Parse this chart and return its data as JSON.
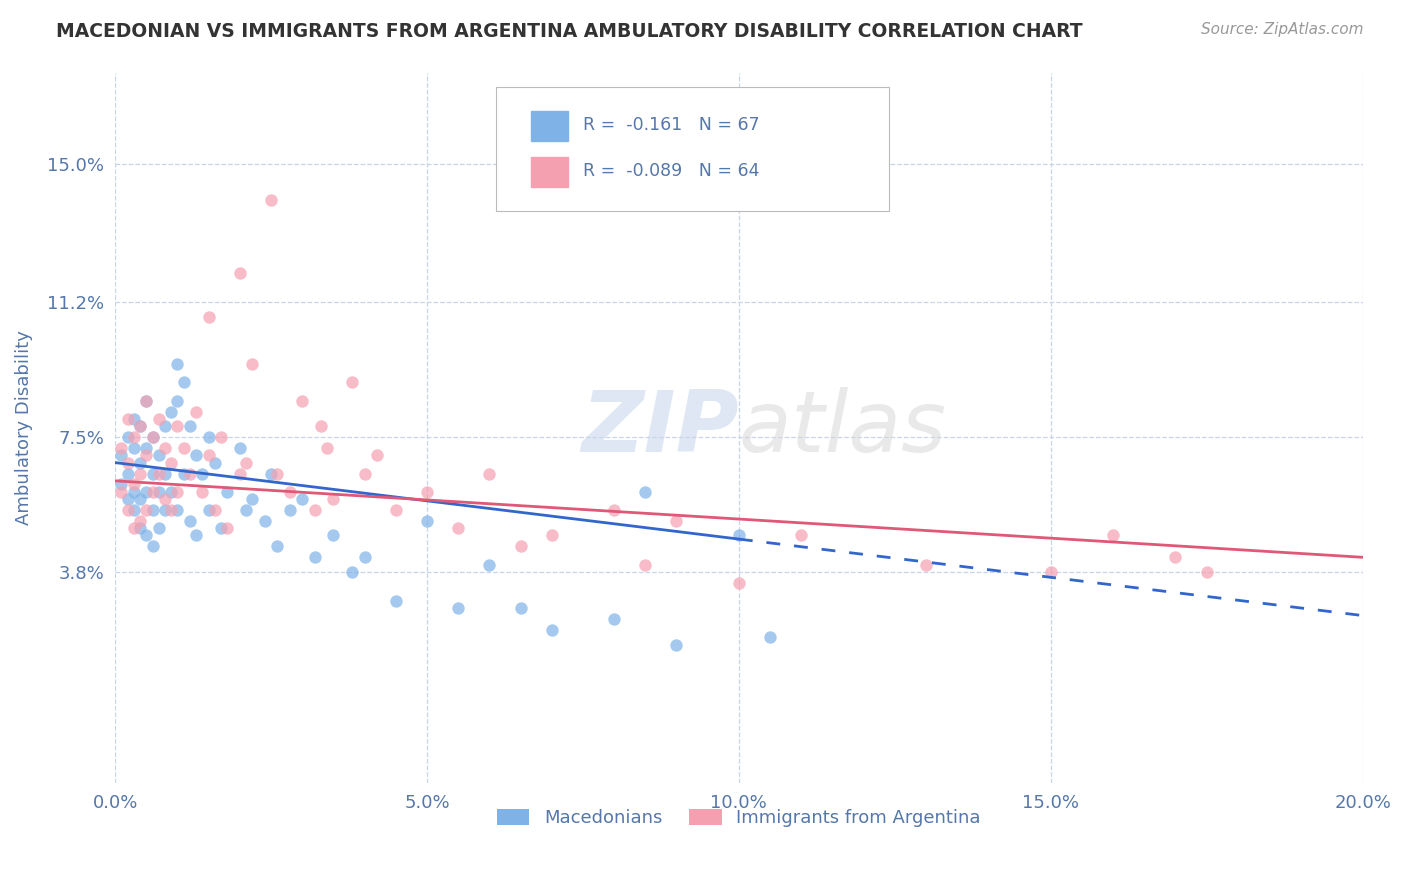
{
  "title": "MACEDONIAN VS IMMIGRANTS FROM ARGENTINA AMBULATORY DISABILITY CORRELATION CHART",
  "source": "Source: ZipAtlas.com",
  "ylabel": "Ambulatory Disability",
  "watermark": "ZIPatlas",
  "xlim": [
    0.0,
    0.2
  ],
  "ylim": [
    -0.02,
    0.175
  ],
  "yticks": [
    0.038,
    0.075,
    0.112,
    0.15
  ],
  "ytick_labels": [
    "3.8%",
    "7.5%",
    "11.2%",
    "15.0%"
  ],
  "xticks": [
    0.0,
    0.05,
    0.1,
    0.15,
    0.2
  ],
  "xtick_labels": [
    "0.0%",
    "5.0%",
    "10.0%",
    "15.0%",
    "20.0%"
  ],
  "grid_color": "#c8d4e8",
  "background_color": "#ffffff",
  "series1_color": "#7fb3e8",
  "series2_color": "#f4a0b0",
  "series1_label": "Macedonians",
  "series2_label": "Immigrants from Argentina",
  "series1_R": "-0.161",
  "series1_N": "67",
  "series2_R": "-0.089",
  "series2_N": "64",
  "legend_color": "#5577aa",
  "axis_label_color": "#5577aa",
  "tick_label_color": "#5577aa",
  "title_color": "#333333",
  "line1_color": "#3366cc",
  "line2_color": "#e05878",
  "mac_trend_x0": 0.0,
  "mac_trend_y0": 0.068,
  "mac_trend_x1": 0.1,
  "mac_trend_y1": 0.047,
  "mac_trend_dash_x1": 0.2,
  "mac_trend_dash_y1": 0.026,
  "arg_trend_x0": 0.0,
  "arg_trend_y0": 0.063,
  "arg_trend_x1": 0.2,
  "arg_trend_y1": 0.042,
  "macedonians_x": [
    0.001,
    0.001,
    0.002,
    0.002,
    0.002,
    0.003,
    0.003,
    0.003,
    0.003,
    0.004,
    0.004,
    0.004,
    0.004,
    0.005,
    0.005,
    0.005,
    0.005,
    0.006,
    0.006,
    0.006,
    0.006,
    0.007,
    0.007,
    0.007,
    0.008,
    0.008,
    0.008,
    0.009,
    0.009,
    0.01,
    0.01,
    0.01,
    0.011,
    0.011,
    0.012,
    0.012,
    0.013,
    0.013,
    0.014,
    0.015,
    0.015,
    0.016,
    0.017,
    0.018,
    0.02,
    0.021,
    0.022,
    0.024,
    0.025,
    0.026,
    0.028,
    0.03,
    0.032,
    0.035,
    0.038,
    0.04,
    0.045,
    0.05,
    0.055,
    0.06,
    0.065,
    0.07,
    0.08,
    0.085,
    0.09,
    0.1,
    0.105
  ],
  "macedonians_y": [
    0.07,
    0.062,
    0.075,
    0.065,
    0.058,
    0.08,
    0.072,
    0.06,
    0.055,
    0.078,
    0.068,
    0.058,
    0.05,
    0.085,
    0.072,
    0.06,
    0.048,
    0.075,
    0.065,
    0.055,
    0.045,
    0.07,
    0.06,
    0.05,
    0.078,
    0.065,
    0.055,
    0.082,
    0.06,
    0.095,
    0.085,
    0.055,
    0.09,
    0.065,
    0.078,
    0.052,
    0.07,
    0.048,
    0.065,
    0.075,
    0.055,
    0.068,
    0.05,
    0.06,
    0.072,
    0.055,
    0.058,
    0.052,
    0.065,
    0.045,
    0.055,
    0.058,
    0.042,
    0.048,
    0.038,
    0.042,
    0.03,
    0.052,
    0.028,
    0.04,
    0.028,
    0.022,
    0.025,
    0.06,
    0.018,
    0.048,
    0.02
  ],
  "argentina_x": [
    0.001,
    0.001,
    0.002,
    0.002,
    0.002,
    0.003,
    0.003,
    0.003,
    0.004,
    0.004,
    0.004,
    0.005,
    0.005,
    0.005,
    0.006,
    0.006,
    0.007,
    0.007,
    0.008,
    0.008,
    0.009,
    0.009,
    0.01,
    0.01,
    0.011,
    0.012,
    0.013,
    0.014,
    0.015,
    0.016,
    0.017,
    0.018,
    0.02,
    0.021,
    0.022,
    0.025,
    0.026,
    0.028,
    0.03,
    0.032,
    0.033,
    0.034,
    0.035,
    0.038,
    0.04,
    0.042,
    0.045,
    0.05,
    0.055,
    0.06,
    0.065,
    0.07,
    0.08,
    0.085,
    0.09,
    0.1,
    0.11,
    0.13,
    0.15,
    0.16,
    0.17,
    0.175,
    0.015,
    0.02
  ],
  "argentina_y": [
    0.072,
    0.06,
    0.08,
    0.068,
    0.055,
    0.075,
    0.062,
    0.05,
    0.078,
    0.065,
    0.052,
    0.085,
    0.07,
    0.055,
    0.075,
    0.06,
    0.08,
    0.065,
    0.072,
    0.058,
    0.068,
    0.055,
    0.078,
    0.06,
    0.072,
    0.065,
    0.082,
    0.06,
    0.07,
    0.055,
    0.075,
    0.05,
    0.12,
    0.068,
    0.095,
    0.14,
    0.065,
    0.06,
    0.085,
    0.055,
    0.078,
    0.072,
    0.058,
    0.09,
    0.065,
    0.07,
    0.055,
    0.06,
    0.05,
    0.065,
    0.045,
    0.048,
    0.055,
    0.04,
    0.052,
    0.035,
    0.048,
    0.04,
    0.038,
    0.048,
    0.042,
    0.038,
    0.108,
    0.065
  ]
}
